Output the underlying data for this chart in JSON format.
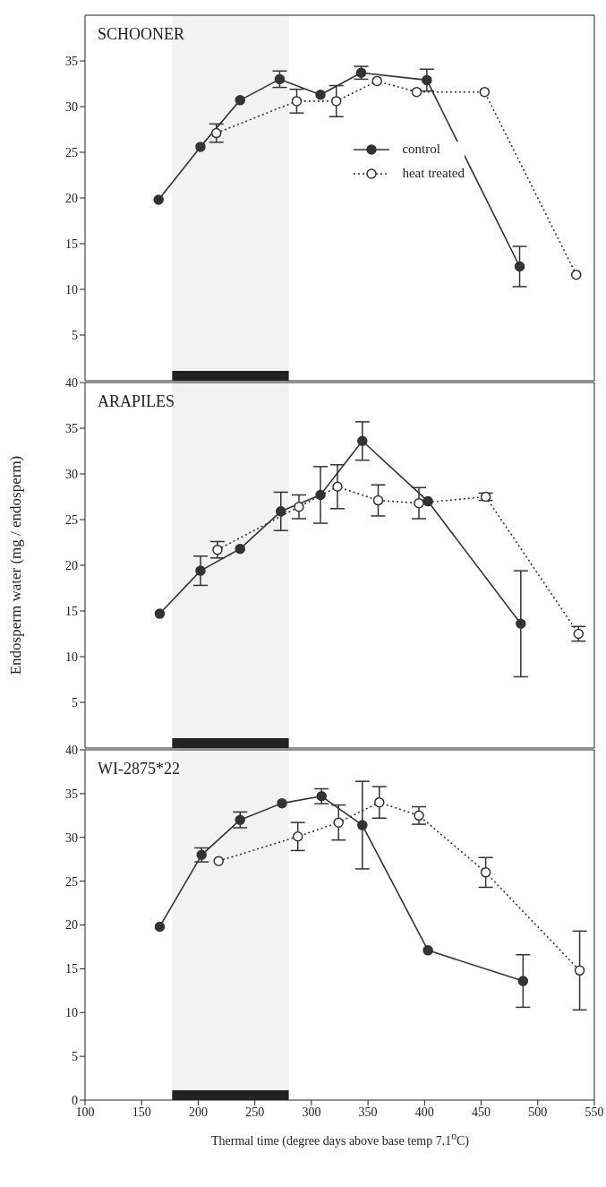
{
  "chart_data": [
    {
      "type": "line",
      "title": "SCHOONER",
      "xlim": [
        100,
        550
      ],
      "xticks": [
        100,
        150,
        200,
        250,
        300,
        350,
        400,
        450,
        500,
        550
      ],
      "ylim": [
        0,
        40
      ],
      "yticks": [
        5,
        10,
        15,
        20,
        25,
        30,
        35
      ],
      "tick_labels": "y",
      "legend": "right",
      "bands": [
        {
          "axis": "x",
          "from": 177,
          "to": 280,
          "color": "#222222"
        }
      ],
      "series": [
        {
          "name": "control",
          "color": "#333333",
          "marker": "circle",
          "line_style": "solid",
          "x": [
            165,
            202,
            237,
            272,
            308,
            344,
            402,
            484
          ],
          "values": [
            19.8,
            25.6,
            30.7,
            33.0,
            31.3,
            33.7,
            32.9,
            12.5
          ],
          "errors": [
            null,
            null,
            null,
            0.9,
            null,
            0.7,
            1.2,
            2.2
          ]
        },
        {
          "name": "heat treated",
          "color": "#333333",
          "marker": "circle",
          "line_style": "dotted",
          "x": [
            216,
            287,
            322,
            358,
            393,
            453,
            534
          ],
          "values": [
            27.1,
            30.6,
            30.6,
            32.8,
            31.6,
            31.6,
            11.6
          ],
          "errors": [
            1.0,
            1.3,
            1.7,
            null,
            null,
            null,
            null
          ]
        }
      ]
    },
    {
      "type": "line",
      "title": "ARAPILES",
      "ylabel": "Endosperm water (mg / endosperm)",
      "xlim": [
        100,
        550
      ],
      "xticks": [
        100,
        150,
        200,
        250,
        300,
        350,
        400,
        450,
        500,
        550
      ],
      "ylim": [
        0,
        40
      ],
      "yticks": [
        5,
        10,
        15,
        20,
        25,
        30,
        35,
        40
      ],
      "tick_labels": "y",
      "bands": [
        {
          "axis": "x",
          "from": 177,
          "to": 280,
          "color": "#222222"
        }
      ],
      "series": [
        {
          "color": "#333333",
          "marker": "circle",
          "line_style": "solid",
          "x": [
            166,
            202,
            237,
            273,
            308,
            345,
            403,
            485
          ],
          "values": [
            14.7,
            19.4,
            21.8,
            25.9,
            27.7,
            33.6,
            27.0,
            13.6
          ],
          "errors": [
            null,
            1.6,
            null,
            2.1,
            3.1,
            2.1,
            null,
            5.8
          ]
        },
        {
          "color": "#333333",
          "marker": "circle",
          "line_style": "dotted",
          "x": [
            217,
            289,
            323,
            359,
            395,
            454,
            536
          ],
          "values": [
            21.7,
            26.4,
            28.6,
            27.1,
            26.8,
            27.5,
            12.5
          ],
          "errors": [
            0.9,
            1.3,
            2.4,
            1.7,
            1.7,
            0.4,
            0.8
          ]
        }
      ]
    },
    {
      "type": "line",
      "title": "WI-2875*22",
      "xlabel": "Thermal time (degree days above base temp 7.1$^{o}$C)",
      "xlim": [
        100,
        550
      ],
      "xticks": [
        100,
        150,
        200,
        250,
        300,
        350,
        400,
        450,
        500,
        550
      ],
      "ylim": [
        0,
        40
      ],
      "yticks": [
        0,
        5,
        10,
        15,
        20,
        25,
        30,
        35,
        40
      ],
      "bands": [
        {
          "axis": "x",
          "from": 177,
          "to": 280,
          "color": "#222222"
        }
      ],
      "series": [
        {
          "color": "#333333",
          "marker": "circle",
          "line_style": "solid",
          "x": [
            166,
            203,
            237,
            274,
            309,
            345,
            403,
            487
          ],
          "values": [
            19.8,
            28.0,
            32.0,
            33.9,
            34.7,
            31.4,
            17.1,
            13.6
          ],
          "errors": [
            null,
            0.8,
            0.9,
            null,
            0.85,
            5.0,
            null,
            3.0
          ]
        },
        {
          "color": "#333333",
          "marker": "circle",
          "line_style": "dotted",
          "x": [
            218,
            288,
            324,
            360,
            395,
            454,
            537
          ],
          "values": [
            27.3,
            30.1,
            31.7,
            34.0,
            32.5,
            26.0,
            14.8
          ],
          "errors": [
            null,
            1.6,
            2.0,
            1.8,
            1.0,
            1.7,
            4.5
          ]
        }
      ]
    }
  ]
}
